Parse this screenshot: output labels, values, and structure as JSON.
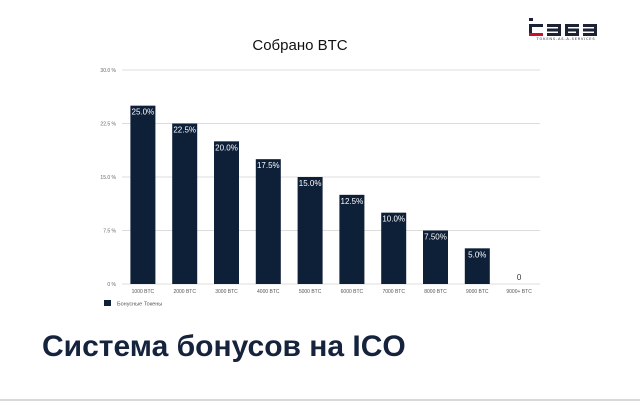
{
  "logo": {
    "tagline": "TOKENS-AS-A-SERVICES"
  },
  "slide_title": "Система бонусов на ICO",
  "colors": {
    "bar": "#0e1f38",
    "grid": "#d0d0d0",
    "title": "#15233c"
  },
  "chart_data": {
    "type": "bar",
    "title": "Собрано BTC",
    "categories": [
      "1000 BTC",
      "2000 BTC",
      "3000 BTC",
      "4000 BTC",
      "5000 BTC",
      "6000 BTC",
      "7000 BTC",
      "8000 BTC",
      "9000 BTC",
      "9000+ BTC"
    ],
    "series": [
      {
        "name": "Бонусные Токены",
        "values": [
          25.0,
          22.5,
          20.0,
          17.5,
          15.0,
          12.5,
          10.0,
          7.5,
          5.0,
          0
        ]
      }
    ],
    "data_labels": [
      "25.0%",
      "22.5%",
      "20.0%",
      "17.5%",
      "15.0%",
      "12.5%",
      "10.0%",
      "7.50%",
      "5.0%",
      "0"
    ],
    "yticks": [
      0,
      7.5,
      15.0,
      22.5,
      30.0
    ],
    "ytick_labels": [
      "0 %",
      "7.5 %",
      "15.0 %",
      "22.5 %",
      "30.0 %"
    ],
    "ylim": [
      0,
      30
    ],
    "grid": true,
    "legend_position": "bottom-left"
  }
}
